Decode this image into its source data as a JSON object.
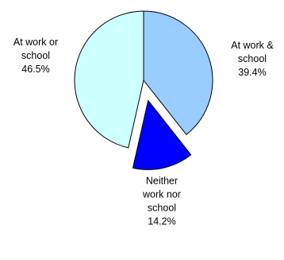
{
  "chart_data": {
    "type": "pie",
    "exploded": true,
    "slices": [
      {
        "label_lines": [
          "At work &",
          "school"
        ],
        "percent_label": "39.4%",
        "value": 39.4,
        "color": "#99ccff"
      },
      {
        "label_lines": [
          "Neither",
          "work nor",
          "school"
        ],
        "percent_label": "14.2%",
        "value": 14.2,
        "color": "#0000ff",
        "exploded": true
      },
      {
        "label_lines": [
          "At work or",
          "school"
        ],
        "percent_label": "46.5%",
        "value": 46.5,
        "color": "#ccffff"
      }
    ]
  }
}
